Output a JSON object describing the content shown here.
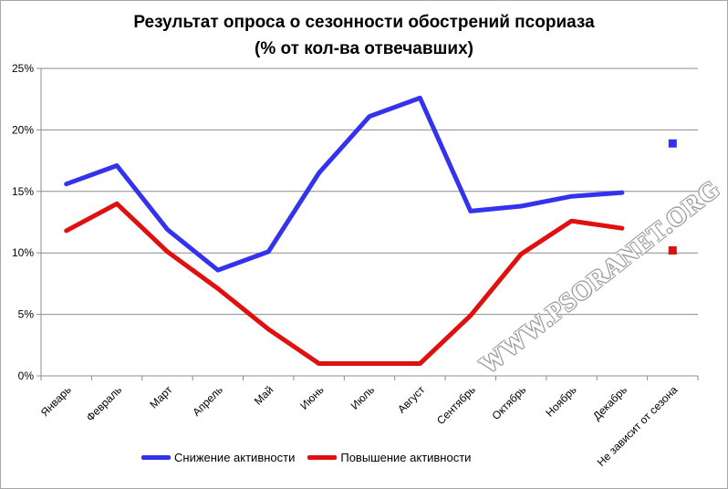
{
  "title_line1": "Результат опроса о сезонности обострений псориаза",
  "title_line2": "(% от кол-ва отвечавших)",
  "watermark": "WWW.PSORANET.ORG",
  "chart_data": {
    "type": "line",
    "categories": [
      "Январь",
      "Февраль",
      "Март",
      "Апрель",
      "Май",
      "Июнь",
      "Июль",
      "Август",
      "Сентябрь",
      "Октябрь",
      "Ноябрь",
      "Декабрь",
      "Не зависит от сезона"
    ],
    "y_ticks": [
      "0%",
      "5%",
      "10%",
      "15%",
      "20%",
      "25%"
    ],
    "ylim": [
      0,
      25
    ],
    "grid": true,
    "legend_position": "bottom-left",
    "series": [
      {
        "name": "Снижение активности",
        "color": "#3333ee",
        "values": [
          15.6,
          17.1,
          11.9,
          8.6,
          10.1,
          16.5,
          21.1,
          22.6,
          13.4,
          13.8,
          14.6,
          14.9,
          null
        ],
        "marker_value": 18.9
      },
      {
        "name": "Повышение активности",
        "color": "#e01010",
        "values": [
          11.8,
          14.0,
          10.1,
          7.1,
          3.8,
          1.0,
          1.0,
          1.0,
          4.9,
          9.9,
          12.6,
          12.0,
          null
        ],
        "marker_value": 10.2
      }
    ]
  }
}
